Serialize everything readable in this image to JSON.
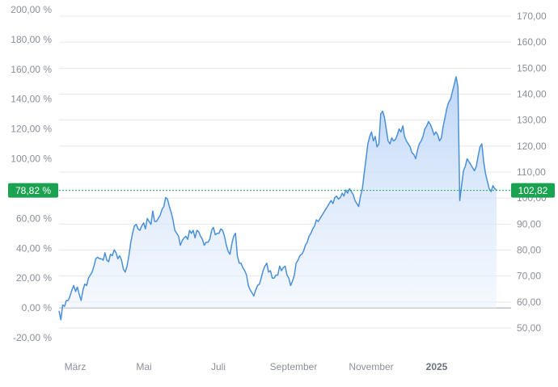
{
  "chart_data": {
    "type": "area",
    "left_axis": {
      "min": -20,
      "max": 200,
      "step": 20,
      "tick_labels": [
        "200,00 %",
        "180,00 %",
        "160,00 %",
        "140,00 %",
        "120,00 %",
        "100,00 %",
        "80,00 %",
        "60,00 %",
        "40,00 %",
        "20,00 %",
        "0,00 %",
        "-20,00 %"
      ]
    },
    "right_axis": {
      "min": 50,
      "max": 170,
      "step": 10,
      "tick_labels": [
        "170,00",
        "160,00",
        "150,00",
        "140,00",
        "130,00",
        "120,00",
        "110,00",
        "100,00",
        "90,00",
        "80,00",
        "70,00",
        "60,00",
        "50,00"
      ]
    },
    "x_labels": [
      {
        "label": "März",
        "bold": false
      },
      {
        "label": "Mai",
        "bold": false
      },
      {
        "label": "Juli",
        "bold": false
      },
      {
        "label": "September",
        "bold": false
      },
      {
        "label": "November",
        "bold": false
      },
      {
        "label": "2025",
        "bold": true
      }
    ],
    "current_value_pct": 78.82,
    "current_value_label_left": "78,82 %",
    "current_value_label_right": "102,82",
    "grid": true,
    "colors": {
      "line": "#4a90d9",
      "fill": "#dbe8fb",
      "marker": "#1aa251",
      "grid": "#e6e8ec",
      "baseline": "#9aa0a8"
    },
    "series": [
      {
        "values": [
          -2,
          -8,
          2,
          1,
          5,
          5,
          8,
          12,
          15,
          11,
          14,
          9,
          5,
          12,
          16,
          15,
          20,
          22,
          24,
          28,
          33,
          34,
          33,
          33,
          32,
          37,
          32,
          31,
          36,
          35,
          39,
          37,
          33,
          35,
          32,
          26,
          24,
          28,
          35,
          44,
          50,
          55,
          56,
          53,
          52,
          55,
          57,
          53,
          60,
          58,
          56,
          65,
          58,
          58,
          60,
          62,
          66,
          68,
          74,
          73,
          68,
          64,
          59,
          52,
          50,
          48,
          42,
          45,
          47,
          48,
          46,
          52,
          50,
          52,
          47,
          52,
          51,
          48,
          46,
          42,
          44,
          44,
          46,
          52,
          54,
          49,
          50,
          50,
          53,
          52,
          48,
          42,
          38,
          36,
          43,
          48,
          50,
          35,
          30,
          30,
          27,
          25,
          22,
          15,
          12,
          10,
          8,
          12,
          15,
          16,
          20,
          25,
          28,
          30,
          24,
          25,
          20,
          20,
          22,
          22,
          28,
          25,
          27,
          28,
          22,
          20,
          15,
          18,
          22,
          30,
          32,
          35,
          36,
          38,
          42,
          44,
          48,
          50,
          53,
          55,
          59,
          58,
          60,
          62,
          64,
          66,
          68,
          70,
          72,
          70,
          74,
          75,
          73,
          74,
          77,
          75,
          79,
          77,
          80,
          78,
          76,
          72,
          70,
          68,
          75,
          80,
          90,
          100,
          110,
          115,
          118,
          112,
          115,
          108,
          110,
          130,
          132,
          128,
          120,
          112,
          110,
          114,
          112,
          113,
          116,
          120,
          118,
          122,
          115,
          112,
          110,
          108,
          104,
          103,
          100,
          106,
          110,
          112,
          115,
          120,
          122,
          125,
          123,
          120,
          116,
          118,
          116,
          112,
          114,
          122,
          128,
          134,
          138,
          140,
          145,
          150,
          155,
          148,
          72,
          82,
          92,
          95,
          100,
          98,
          96,
          94,
          92,
          95,
          102,
          108,
          110,
          98,
          90,
          85,
          80,
          78,
          82,
          80,
          79
        ]
      }
    ]
  }
}
